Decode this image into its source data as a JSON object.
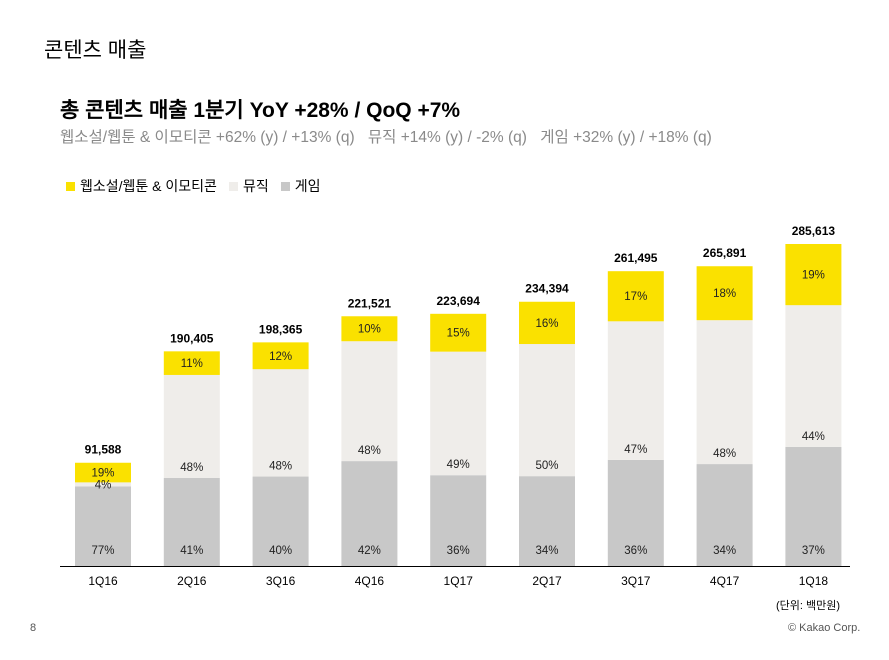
{
  "page": {
    "title": "콘텐츠 매출",
    "headline": "총 콘텐츠 매출 1분기 YoY +28% / QoQ +7%",
    "sublines": [
      "웹소설/웹툰 & 이모티콘 +62% (y) / +13% (q)",
      "뮤직 +14% (y) / -2% (q)",
      "게임 +32% (y) / +18% (q)"
    ],
    "unit_note": "(단위: 백만원)",
    "page_number": "8",
    "copyright": "© Kakao Corp."
  },
  "chart_data": {
    "type": "bar",
    "stacked": true,
    "categories": [
      "1Q16",
      "2Q16",
      "3Q16",
      "4Q16",
      "1Q17",
      "2Q17",
      "3Q17",
      "4Q17",
      "1Q18"
    ],
    "totals": [
      91588,
      190405,
      198365,
      221521,
      223694,
      234394,
      261495,
      265891,
      285613
    ],
    "total_labels": [
      "91,588",
      "190,405",
      "198,365",
      "221,521",
      "223,694",
      "234,394",
      "261,495",
      "265,891",
      "285,613"
    ],
    "series": [
      {
        "name": "게임",
        "color": "#c8c8c8",
        "share_pct": [
          77,
          41,
          40,
          42,
          36,
          34,
          36,
          34,
          37
        ],
        "labels": [
          "77%",
          "41%",
          "40%",
          "42%",
          "36%",
          "34%",
          "36%",
          "34%",
          "37%"
        ]
      },
      {
        "name": "뮤직",
        "color": "#efedea",
        "share_pct": [
          4,
          48,
          48,
          48,
          49,
          50,
          47,
          48,
          44
        ],
        "labels": [
          "4%",
          "48%",
          "48%",
          "48%",
          "49%",
          "50%",
          "47%",
          "48%",
          "44%"
        ]
      },
      {
        "name": "웹소설/웹툰 & 이모티콘",
        "color": "#fae100",
        "share_pct": [
          19,
          11,
          12,
          10,
          15,
          16,
          17,
          18,
          19
        ],
        "labels": [
          "19%",
          "11%",
          "12%",
          "10%",
          "15%",
          "16%",
          "17%",
          "18%",
          "19%"
        ]
      }
    ],
    "legend": [
      "웹소설/웹툰 & 이모티콘",
      "뮤직",
      "게임"
    ],
    "legend_position": "top-left",
    "ylim": [
      0,
      300000
    ],
    "grid": false
  }
}
